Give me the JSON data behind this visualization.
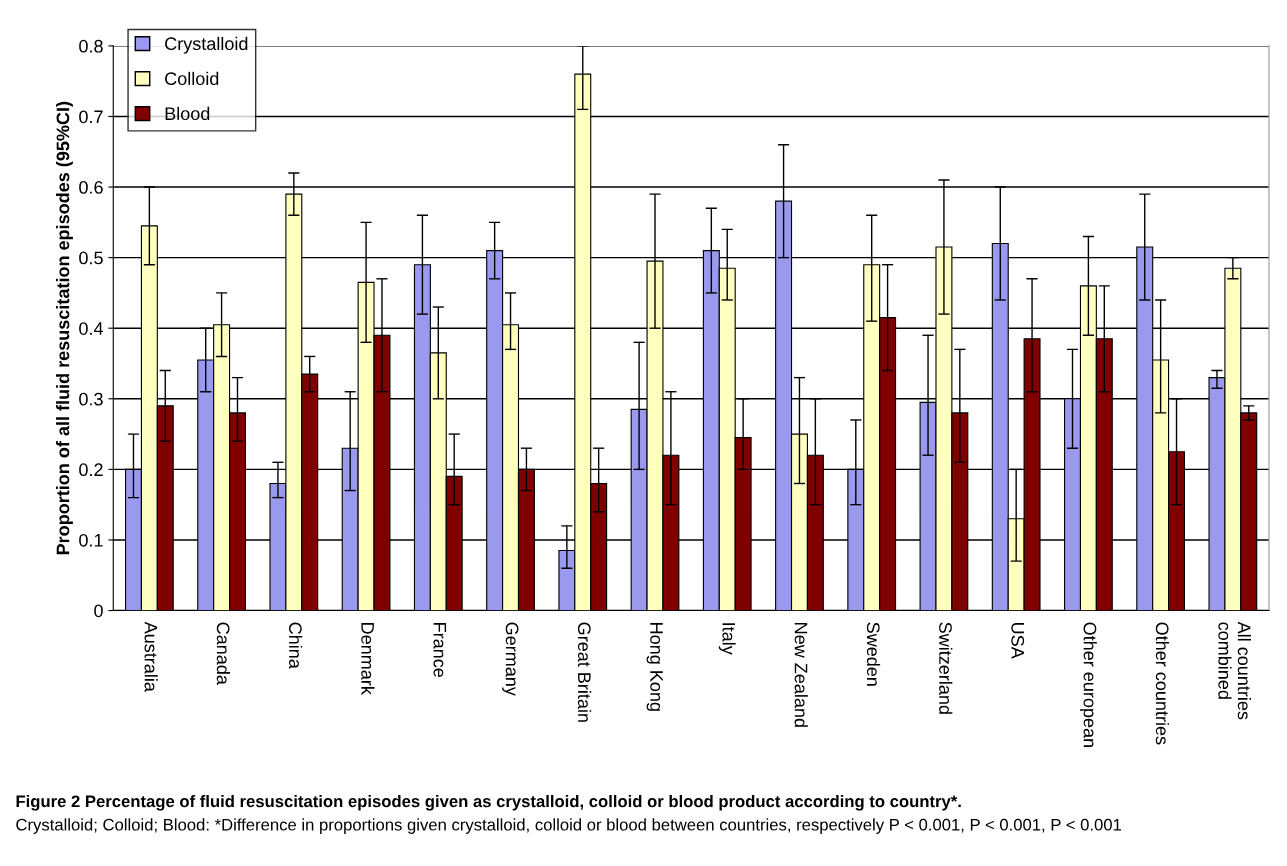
{
  "chart_data": {
    "type": "bar",
    "title": "Figure 2 Percentage of fluid resuscitation episodes given as crystalloid, colloid or blood product according to country*.",
    "annotations": [
      "Crystalloid; Colloid; Blood: *Difference in proportions given crystalloid, colloid or blood between countries, respectively P < 0.001, P < 0.001, P < 0.001"
    ],
    "ylabel": "Proportion of all fluid resuscitation episodes (95%CI)",
    "categories": [
      "Australia",
      "Canada",
      "China",
      "Denmark",
      "France",
      "Germany",
      "Great Britain",
      "Hong Kong",
      "Italy",
      "New Zealand",
      "Sweden",
      "Switzerland",
      "USA",
      "Other european",
      "Other countries",
      "All countries\ncombined"
    ],
    "series": [
      {
        "name": "Crystalloid",
        "color": "#9999ee",
        "values": [
          0.2,
          0.355,
          0.18,
          0.23,
          0.49,
          0.51,
          0.085,
          0.285,
          0.51,
          0.58,
          0.2,
          0.295,
          0.52,
          0.3,
          0.515,
          0.33
        ],
        "errors": [
          [
            0.16,
            0.25
          ],
          [
            0.31,
            0.4
          ],
          [
            0.16,
            0.21
          ],
          [
            0.17,
            0.31
          ],
          [
            0.42,
            0.56
          ],
          [
            0.47,
            0.55
          ],
          [
            0.06,
            0.12
          ],
          [
            0.2,
            0.38
          ],
          [
            0.45,
            0.57
          ],
          [
            0.5,
            0.66
          ],
          [
            0.15,
            0.27
          ],
          [
            0.22,
            0.39
          ],
          [
            0.44,
            0.6
          ],
          [
            0.23,
            0.37
          ],
          [
            0.44,
            0.59
          ],
          [
            0.315,
            0.34
          ]
        ]
      },
      {
        "name": "Colloid",
        "color": "#ffffc0",
        "values": [
          0.545,
          0.405,
          0.59,
          0.465,
          0.365,
          0.405,
          0.76,
          0.495,
          0.485,
          0.25,
          0.49,
          0.515,
          0.13,
          0.46,
          0.355,
          0.485
        ],
        "errors": [
          [
            0.49,
            0.6
          ],
          [
            0.36,
            0.45
          ],
          [
            0.56,
            0.62
          ],
          [
            0.38,
            0.55
          ],
          [
            0.3,
            0.43
          ],
          [
            0.37,
            0.45
          ],
          [
            0.71,
            0.8
          ],
          [
            0.4,
            0.59
          ],
          [
            0.44,
            0.54
          ],
          [
            0.18,
            0.33
          ],
          [
            0.41,
            0.56
          ],
          [
            0.42,
            0.61
          ],
          [
            0.07,
            0.2
          ],
          [
            0.39,
            0.53
          ],
          [
            0.28,
            0.44
          ],
          [
            0.47,
            0.5
          ]
        ]
      },
      {
        "name": "Blood",
        "color": "#800000",
        "values": [
          0.29,
          0.28,
          0.335,
          0.39,
          0.19,
          0.2,
          0.18,
          0.22,
          0.245,
          0.22,
          0.415,
          0.28,
          0.385,
          0.385,
          0.225,
          0.28
        ],
        "errors": [
          [
            0.24,
            0.34
          ],
          [
            0.24,
            0.33
          ],
          [
            0.31,
            0.36
          ],
          [
            0.31,
            0.47
          ],
          [
            0.15,
            0.25
          ],
          [
            0.17,
            0.23
          ],
          [
            0.14,
            0.23
          ],
          [
            0.15,
            0.31
          ],
          [
            0.2,
            0.3
          ],
          [
            0.15,
            0.3
          ],
          [
            0.34,
            0.49
          ],
          [
            0.21,
            0.37
          ],
          [
            0.31,
            0.47
          ],
          [
            0.31,
            0.46
          ],
          [
            0.15,
            0.3
          ],
          [
            0.27,
            0.29
          ]
        ]
      }
    ],
    "ylim": [
      0,
      0.8
    ],
    "yticks": [
      {
        "value": 0,
        "label": "0"
      },
      0.1,
      0.2,
      0.3,
      0.4,
      0.5,
      0.6,
      0.7,
      0.8
    ],
    "grid": "y",
    "legend": "top left"
  }
}
